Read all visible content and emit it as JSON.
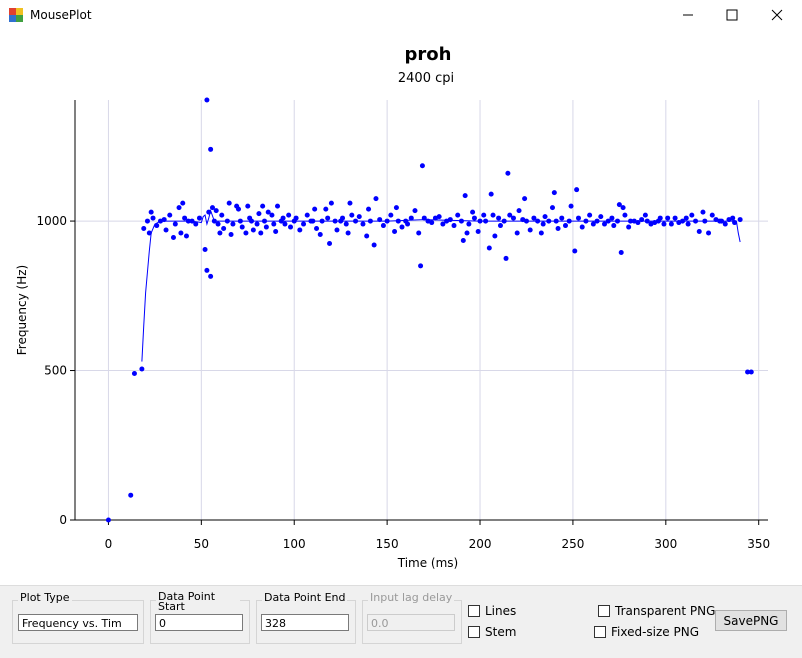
{
  "window": {
    "title": "MousePlot"
  },
  "chart_data": {
    "type": "scatter",
    "title": "proh",
    "subtitle": "2400 cpi",
    "x_label": "Time (ms)",
    "y_label": "Frequency (Hz)",
    "xlim": [
      -18,
      355
    ],
    "ylim": [
      0,
      1405
    ],
    "xticks": [
      0,
      50,
      100,
      150,
      200,
      250,
      300,
      350
    ],
    "yticks": [
      0,
      500,
      1000
    ],
    "grid": true,
    "series": [
      {
        "type": "scatter",
        "color": "#0000ff",
        "x": [
          0,
          12,
          14,
          18,
          19,
          21,
          22,
          23,
          24,
          26,
          28,
          30,
          31,
          33,
          35,
          36,
          38,
          39,
          40,
          41,
          42,
          43,
          45,
          47,
          49,
          52,
          53,
          53,
          54,
          55,
          55,
          56,
          57,
          58,
          59,
          60,
          61,
          62,
          64,
          65,
          66,
          67,
          69,
          70,
          71,
          72,
          74,
          75,
          76,
          77,
          78,
          80,
          81,
          82,
          83,
          84,
          85,
          86,
          88,
          89,
          90,
          91,
          93,
          94,
          95,
          97,
          98,
          100,
          101,
          103,
          105,
          107,
          109,
          110,
          111,
          112,
          114,
          115,
          117,
          118,
          119,
          120,
          122,
          123,
          125,
          126,
          128,
          129,
          130,
          131,
          133,
          135,
          137,
          139,
          140,
          141,
          143,
          144,
          146,
          148,
          150,
          152,
          154,
          155,
          156,
          158,
          160,
          161,
          163,
          165,
          167,
          168,
          169,
          170,
          172,
          174,
          176,
          178,
          180,
          182,
          184,
          186,
          188,
          190,
          191,
          192,
          193,
          194,
          196,
          197,
          199,
          200,
          202,
          203,
          205,
          206,
          207,
          208,
          210,
          211,
          213,
          214,
          215,
          216,
          218,
          220,
          221,
          223,
          224,
          225,
          227,
          229,
          231,
          233,
          234,
          235,
          237,
          239,
          240,
          241,
          242,
          244,
          246,
          248,
          249,
          251,
          252,
          253,
          255,
          257,
          259,
          261,
          263,
          265,
          267,
          269,
          271,
          272,
          274,
          275,
          276,
          277,
          278,
          280,
          281,
          283,
          285,
          287,
          289,
          290,
          292,
          294,
          296,
          297,
          299,
          301,
          303,
          305,
          307,
          309,
          311,
          312,
          314,
          316,
          318,
          320,
          321,
          323,
          325,
          327,
          329,
          330,
          332,
          334,
          336,
          337,
          340,
          344,
          346
        ],
        "values": [
          0,
          83,
          490,
          505,
          975,
          1000,
          960,
          1030,
          1010,
          985,
          1000,
          1005,
          970,
          1020,
          945,
          990,
          1045,
          960,
          1060,
          1010,
          950,
          1000,
          1000,
          990,
          1010,
          905,
          1405,
          835,
          1030,
          815,
          1240,
          1045,
          1000,
          1035,
          990,
          960,
          1020,
          975,
          1000,
          1060,
          955,
          990,
          1050,
          1040,
          1000,
          980,
          960,
          1050,
          1010,
          1000,
          970,
          990,
          1025,
          960,
          1050,
          1000,
          980,
          1030,
          1020,
          990,
          965,
          1050,
          1000,
          1010,
          990,
          1020,
          980,
          1000,
          1010,
          970,
          990,
          1020,
          1000,
          1000,
          1040,
          975,
          955,
          1000,
          1040,
          1010,
          925,
          1060,
          1000,
          970,
          1000,
          1010,
          990,
          960,
          1060,
          1020,
          1000,
          1015,
          990,
          950,
          1040,
          1000,
          920,
          1075,
          1005,
          985,
          1000,
          1020,
          965,
          1045,
          1000,
          980,
          1000,
          990,
          1010,
          1035,
          960,
          850,
          1185,
          1010,
          1000,
          995,
          1010,
          1015,
          990,
          1000,
          1005,
          985,
          1020,
          1000,
          935,
          1085,
          960,
          990,
          1030,
          1010,
          965,
          1000,
          1020,
          1000,
          910,
          1090,
          1020,
          950,
          1010,
          985,
          1000,
          875,
          1160,
          1020,
          1010,
          960,
          1035,
          1005,
          1075,
          1000,
          970,
          1010,
          1000,
          960,
          990,
          1015,
          1000,
          1045,
          1095,
          1000,
          975,
          1010,
          985,
          1000,
          1050,
          900,
          1105,
          1010,
          980,
          1000,
          1020,
          990,
          1000,
          1015,
          990,
          1000,
          1010,
          985,
          1000,
          1055,
          895,
          1045,
          1020,
          980,
          1000,
          1000,
          995,
          1005,
          1020,
          1000,
          990,
          995,
          1000,
          1010,
          990,
          1010,
          990,
          1010,
          995,
          1000,
          1010,
          990,
          1020,
          1000,
          965,
          1030,
          1000,
          960,
          1020,
          1005,
          1000,
          1000,
          990,
          1005,
          1010,
          995,
          1005,
          495,
          495
        ]
      },
      {
        "type": "line",
        "color": "#0000ff",
        "x": [
          18,
          19,
          20,
          21,
          22,
          23,
          25,
          28,
          35,
          45,
          50,
          51,
          52,
          53,
          54,
          55,
          57,
          60,
          70,
          80,
          100,
          120,
          150,
          170,
          200,
          250,
          300,
          330,
          338,
          339,
          340
        ],
        "values": [
          530,
          650,
          760,
          830,
          900,
          960,
          990,
          1000,
          1000,
          1000,
          995,
          1015,
          1020,
          990,
          1010,
          1035,
          1000,
          1000,
          1000,
          1000,
          1000,
          1000,
          1000,
          1005,
          1000,
          1000,
          1000,
          1000,
          1000,
          960,
          930
        ]
      }
    ]
  },
  "controls": {
    "plot_type": {
      "label": "Plot Type",
      "value": "Frequency vs. Tim"
    },
    "start": {
      "label": "Data Point Start",
      "value": "0"
    },
    "end": {
      "label": "Data Point End",
      "value": "328"
    },
    "lag": {
      "label": "Input lag delay",
      "value": "0.0"
    },
    "lines": "Lines",
    "stem": "Stem",
    "transparent": "Transparent PNG",
    "fixed": "Fixed-size PNG",
    "save": "SavePNG"
  }
}
